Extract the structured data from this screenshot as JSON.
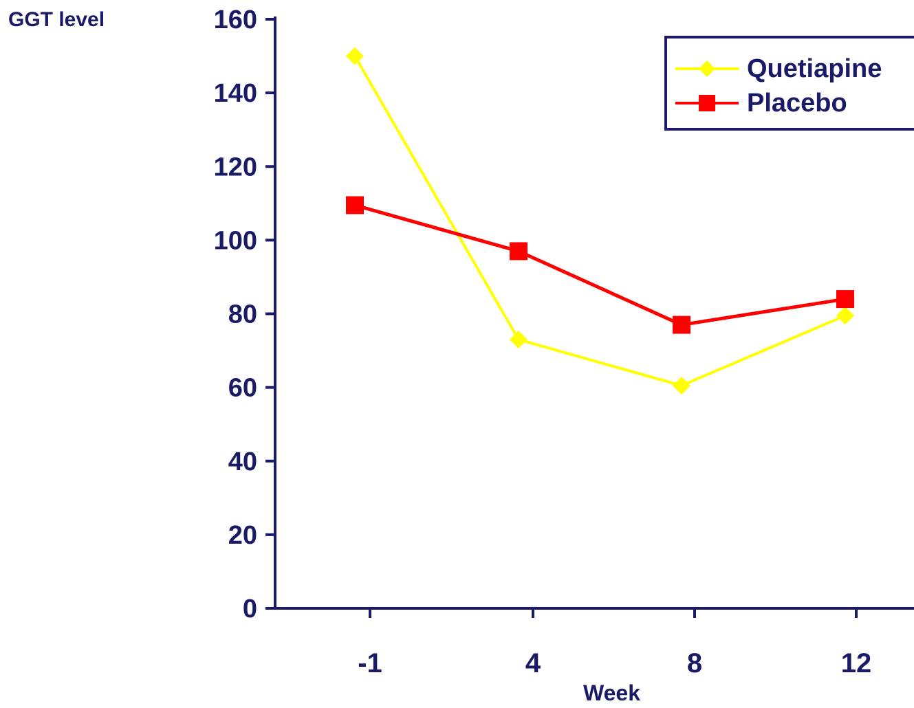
{
  "colors": {
    "axis": "#1a1a66",
    "text": "#1a1a66",
    "quetiapine": "#ffff00",
    "placebo": "#ff0000"
  },
  "chart_data": {
    "type": "line",
    "ylabel": "GGT level",
    "xlabel": "Week",
    "categories": [
      "-1",
      "4",
      "8",
      "12"
    ],
    "ylim": [
      0,
      160
    ],
    "yticks": [
      0,
      20,
      40,
      60,
      80,
      100,
      120,
      140,
      160
    ],
    "series": [
      {
        "name": "Quetiapine",
        "marker": "diamond",
        "color": "#ffff00",
        "values": [
          150,
          73,
          60.5,
          79.5
        ]
      },
      {
        "name": "Placebo",
        "marker": "square",
        "color": "#ff0000",
        "values": [
          109.5,
          97,
          77,
          84
        ]
      }
    ],
    "legend": {
      "position": "top-right"
    },
    "grid": false
  }
}
